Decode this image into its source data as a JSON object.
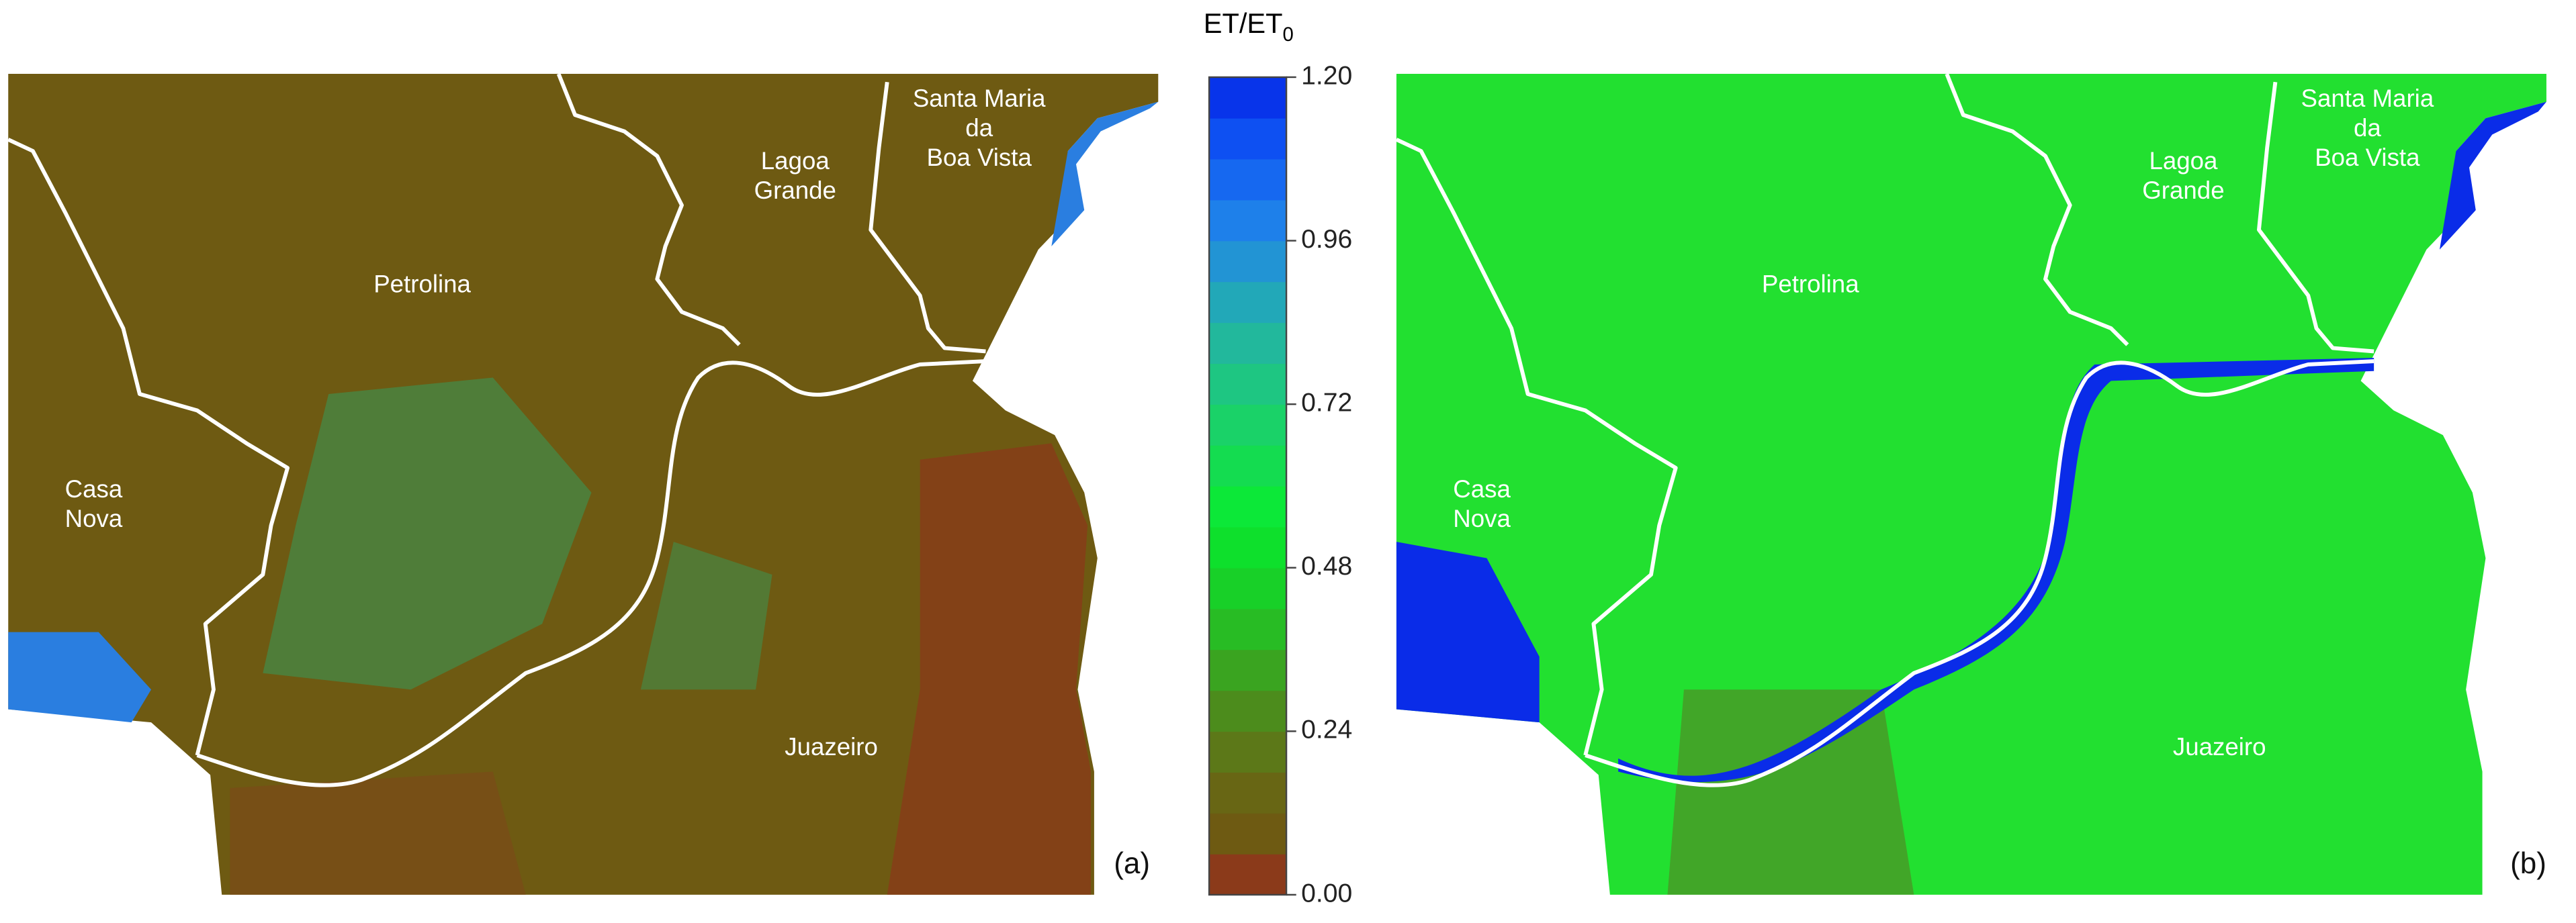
{
  "colorbar": {
    "title": "ET/ET",
    "title_subscript": "0",
    "range": [
      0,
      1.2
    ],
    "ticks": [
      {
        "value": 0,
        "label": "0.00"
      },
      {
        "value": 0.24,
        "label": "0.24"
      },
      {
        "value": 0.48,
        "label": "0.48"
      },
      {
        "value": 0.72,
        "label": "0.72"
      },
      {
        "value": 0.96,
        "label": "0.96"
      },
      {
        "value": 1.2,
        "label": "1.20"
      }
    ],
    "colors": [
      "#8b3a1a",
      "#6e5a12",
      "#686614",
      "#5c7818",
      "#4c8c1c",
      "#3aa420",
      "#28bc24",
      "#18d028",
      "#0ee02c",
      "#0ce838",
      "#14dc50",
      "#1ad268",
      "#1ec682",
      "#22b89c",
      "#22a8b8",
      "#2294d4",
      "#1e80ea",
      "#1668f0",
      "#0e50f2",
      "#0834ea"
    ]
  },
  "panels": [
    {
      "label": "(a)",
      "places": {
        "petrolina": [
          "Petrolina"
        ],
        "lagoa": [
          "Lagoa",
          "Grande"
        ],
        "santa": [
          "Santa Maria",
          "da",
          "Boa Vista"
        ],
        "casa": [
          "Casa",
          "Nova"
        ],
        "juazeiro": [
          "Juazeiro"
        ]
      }
    },
    {
      "label": "(b)",
      "places": {
        "petrolina": [
          "Petrolina"
        ],
        "lagoa": [
          "Lagoa",
          "Grande"
        ],
        "santa": [
          "Santa Maria",
          "da",
          "Boa Vista"
        ],
        "casa": [
          "Casa",
          "Nova"
        ],
        "juazeiro": [
          "Juazeiro"
        ]
      }
    }
  ]
}
